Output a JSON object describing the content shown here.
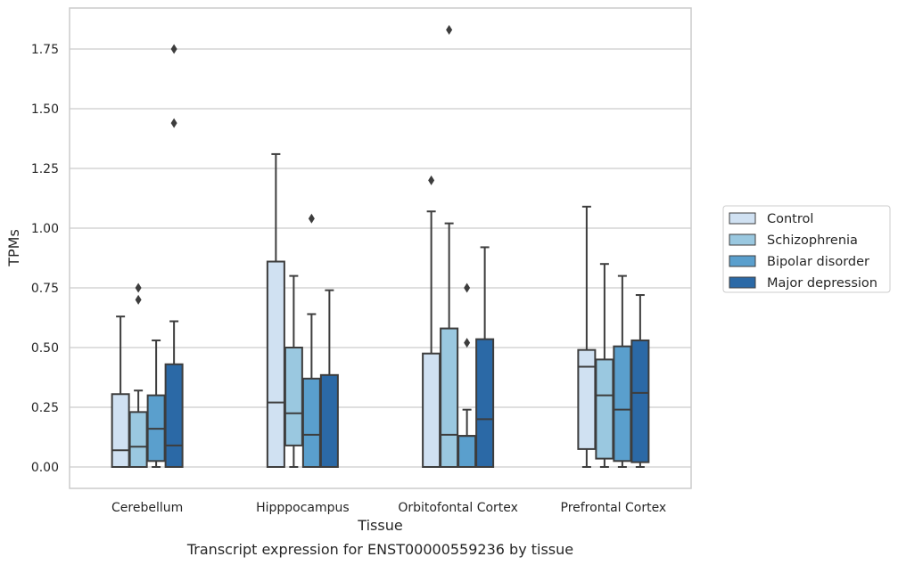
{
  "chart_data": {
    "type": "box",
    "xlabel": "Tissue",
    "ylabel": "TPMs",
    "caption": "Transcript expression for ENST00000559236 by tissue",
    "ylim": [
      -0.09,
      1.93
    ],
    "yticks": [
      0.0,
      0.25,
      0.5,
      0.75,
      1.0,
      1.25,
      1.5,
      1.75
    ],
    "ytick_labels": [
      "0.00",
      "0.25",
      "0.50",
      "0.75",
      "1.00",
      "1.25",
      "1.50",
      "1.75"
    ],
    "grid": "horizontal",
    "legend_position": "right",
    "categories": [
      "Cerebellum",
      "Hipppocampus",
      "Orbitofontal Cortex",
      "Prefrontal Cortex"
    ],
    "series": [
      {
        "name": "Control",
        "color": "#d0e1f2",
        "boxes": [
          {
            "whislo": 0.0,
            "q1": 0.0,
            "med": 0.07,
            "q3": 0.305,
            "whishi": 0.63,
            "fliers": []
          },
          {
            "whislo": 0.0,
            "q1": 0.0,
            "med": 0.27,
            "q3": 0.86,
            "whishi": 1.31,
            "fliers": []
          },
          {
            "whislo": 0.0,
            "q1": 0.0,
            "med": 0.0,
            "q3": 0.475,
            "whishi": 1.07,
            "fliers": [
              1.2
            ]
          },
          {
            "whislo": 0.0,
            "q1": 0.075,
            "med": 0.42,
            "q3": 0.49,
            "whishi": 1.09,
            "fliers": []
          }
        ]
      },
      {
        "name": "Schizophrenia",
        "color": "#9ac8e0",
        "boxes": [
          {
            "whislo": 0.0,
            "q1": 0.0,
            "med": 0.085,
            "q3": 0.23,
            "whishi": 0.32,
            "fliers": [
              0.7,
              0.75
            ]
          },
          {
            "whislo": 0.0,
            "q1": 0.09,
            "med": 0.225,
            "q3": 0.5,
            "whishi": 0.8,
            "fliers": []
          },
          {
            "whislo": 0.0,
            "q1": 0.0,
            "med": 0.135,
            "q3": 0.58,
            "whishi": 1.02,
            "fliers": [
              1.83
            ]
          },
          {
            "whislo": 0.0,
            "q1": 0.035,
            "med": 0.3,
            "q3": 0.45,
            "whishi": 0.85,
            "fliers": []
          }
        ]
      },
      {
        "name": "Bipolar disorder",
        "color": "#5a9fcd",
        "boxes": [
          {
            "whislo": 0.0,
            "q1": 0.025,
            "med": 0.16,
            "q3": 0.3,
            "whishi": 0.53,
            "fliers": []
          },
          {
            "whislo": 0.0,
            "q1": 0.0,
            "med": 0.135,
            "q3": 0.37,
            "whishi": 0.64,
            "fliers": [
              1.04
            ]
          },
          {
            "whislo": 0.0,
            "q1": 0.0,
            "med": 0.13,
            "q3": 0.13,
            "whishi": 0.24,
            "fliers": [
              0.52,
              0.75
            ]
          },
          {
            "whislo": 0.0,
            "q1": 0.025,
            "med": 0.24,
            "q3": 0.505,
            "whishi": 0.8,
            "fliers": []
          }
        ]
      },
      {
        "name": "Major depression",
        "color": "#2b69a6",
        "boxes": [
          {
            "whislo": 0.0,
            "q1": 0.0,
            "med": 0.09,
            "q3": 0.43,
            "whishi": 0.61,
            "fliers": [
              1.44,
              1.75
            ]
          },
          {
            "whislo": 0.0,
            "q1": 0.0,
            "med": 0.0,
            "q3": 0.385,
            "whishi": 0.74,
            "fliers": []
          },
          {
            "whislo": 0.0,
            "q1": 0.0,
            "med": 0.2,
            "q3": 0.535,
            "whishi": 0.92,
            "fliers": []
          },
          {
            "whislo": 0.0,
            "q1": 0.02,
            "med": 0.31,
            "q3": 0.53,
            "whishi": 0.72,
            "fliers": []
          }
        ]
      }
    ]
  }
}
